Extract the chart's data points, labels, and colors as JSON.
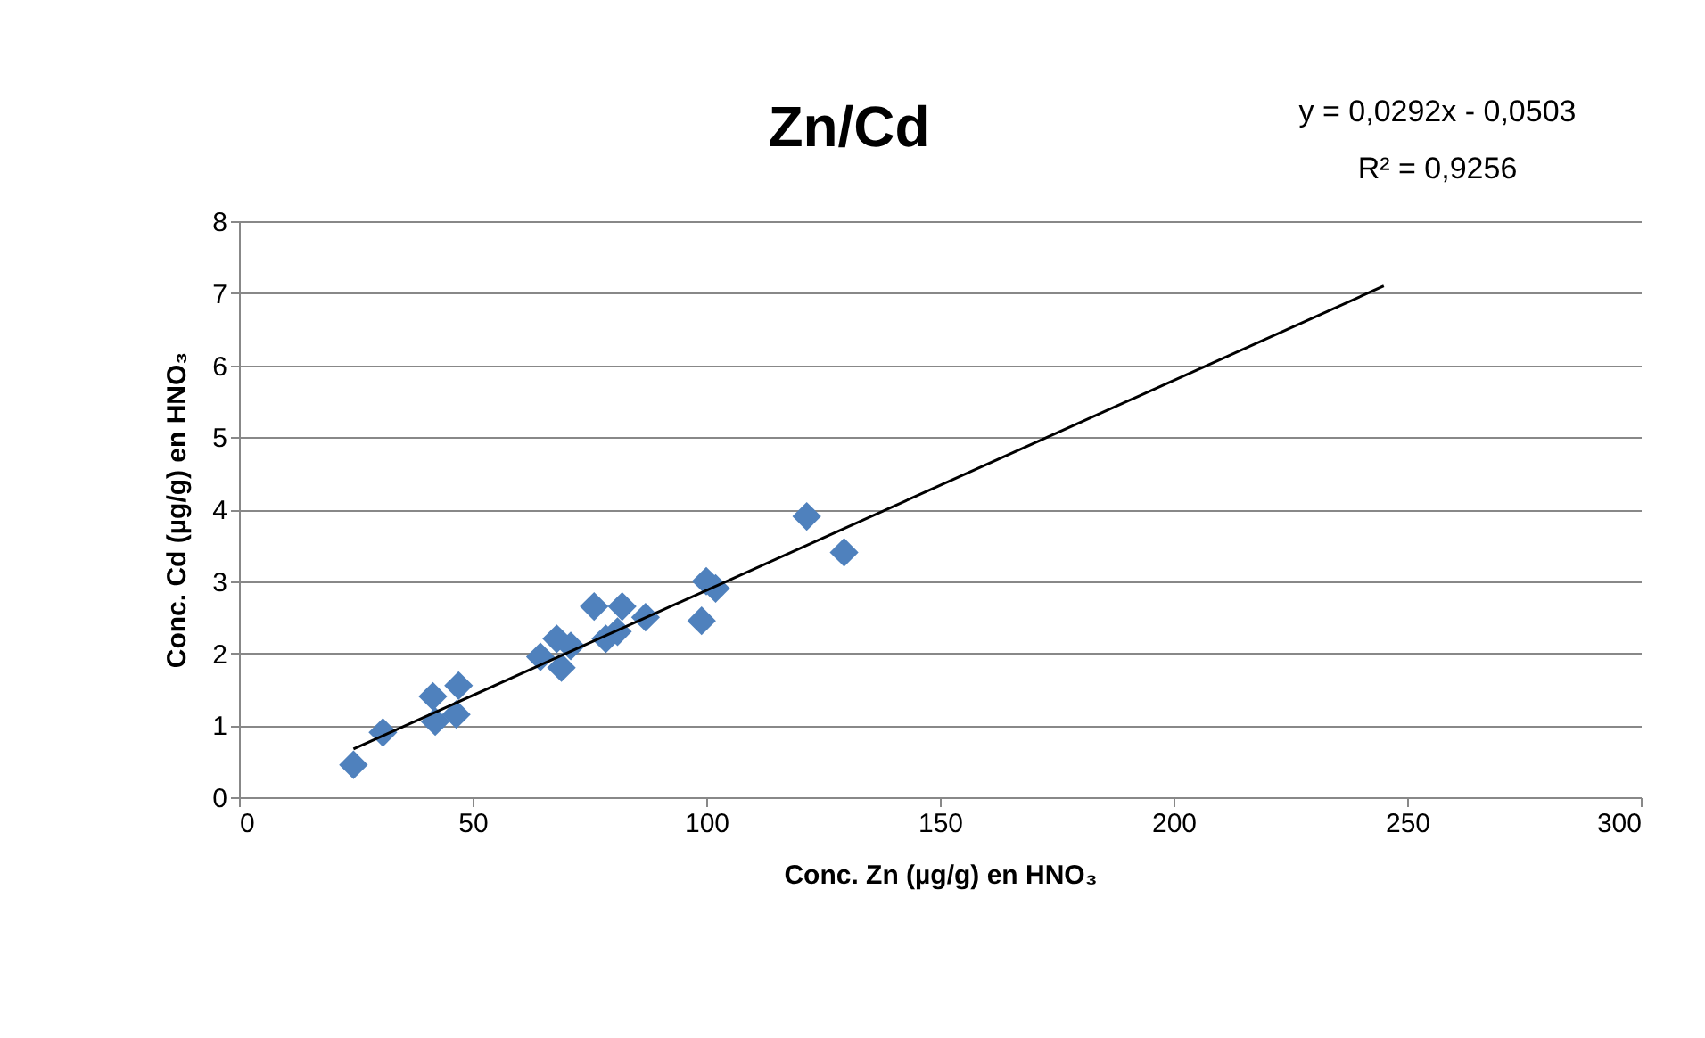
{
  "chart_data": {
    "type": "scatter",
    "title": "Zn/Cd",
    "xlabel": "Conc. Zn (µg/g) en HNO₃",
    "ylabel": "Conc. Cd (µg/g) en HNO₃",
    "annotations": [
      "y = 0,0292x - 0,0503",
      "R² = 0,9256"
    ],
    "xlim": [
      0,
      300
    ],
    "xticks": [
      0,
      50,
      100,
      150,
      200,
      250,
      300
    ],
    "ylim": [
      0,
      8
    ],
    "yticks": [
      0,
      1,
      2,
      3,
      4,
      5,
      6,
      7,
      8
    ],
    "grid": "y",
    "series": [
      {
        "color": "#4f81bd",
        "marker": "diamond",
        "x": [
          24.5,
          30.8,
          41.5,
          42,
          46.5,
          47,
          64.5,
          68,
          69,
          71,
          76,
          78.5,
          82,
          81,
          87,
          99,
          100,
          102,
          121.5,
          129.5
        ],
        "values": [
          0.45,
          0.9,
          1.4,
          1.05,
          1.15,
          1.55,
          1.95,
          2.2,
          1.8,
          2.1,
          2.65,
          2.2,
          2.65,
          2.3,
          2.5,
          2.45,
          3.0,
          2.9,
          3.9,
          3.4
        ]
      },
      {
        "type": "line",
        "color": "#000000",
        "marker": "none",
        "x": [
          24.5,
          245
        ],
        "values": [
          0.67,
          7.1
        ]
      }
    ]
  }
}
